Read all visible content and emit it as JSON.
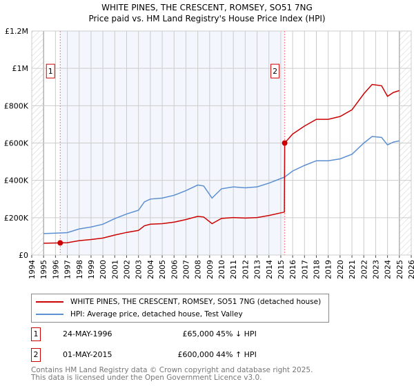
{
  "chart_data": {
    "type": "line",
    "title": "WHITE PINES, THE CRESCENT, ROMSEY, SO51 7NG",
    "subtitle": "Price paid vs. HM Land Registry's House Price Index (HPI)",
    "xlim": [
      1994,
      2026
    ],
    "ylim": [
      0,
      1200000
    ],
    "x_ticks": [
      "1994",
      "1995",
      "1996",
      "1997",
      "1998",
      "1999",
      "2000",
      "2001",
      "2002",
      "2003",
      "2004",
      "2005",
      "2006",
      "2007",
      "2008",
      "2009",
      "2010",
      "2011",
      "2012",
      "2013",
      "2014",
      "2015",
      "2016",
      "2017",
      "2018",
      "2019",
      "2020",
      "2021",
      "2022",
      "2023",
      "2024",
      "2025",
      "2026"
    ],
    "y_ticks": [
      {
        "value": 0,
        "label": "£0"
      },
      {
        "value": 200000,
        "label": "£200K"
      },
      {
        "value": 400000,
        "label": "£400K"
      },
      {
        "value": 600000,
        "label": "£600K"
      },
      {
        "value": 800000,
        "label": "£800K"
      },
      {
        "value": 1000000,
        "label": "£1M"
      },
      {
        "value": 1200000,
        "label": "£1.2M"
      }
    ],
    "grid": true,
    "series": [
      {
        "name": "WHITE PINES, THE CRESCENT, ROMSEY, SO51 7NG (detached house)",
        "color": "#cc0000",
        "points": [
          [
            1995,
            63000
          ],
          [
            1996.4,
            65000
          ],
          [
            1997,
            66000
          ],
          [
            1998,
            77000
          ],
          [
            1999,
            83000
          ],
          [
            2000,
            91000
          ],
          [
            2001,
            107000
          ],
          [
            2002,
            121000
          ],
          [
            2003,
            132000
          ],
          [
            2003.5,
            157000
          ],
          [
            2004,
            165000
          ],
          [
            2005,
            168000
          ],
          [
            2006,
            176000
          ],
          [
            2007,
            190000
          ],
          [
            2008,
            207000
          ],
          [
            2008.5,
            204000
          ],
          [
            2009.2,
            168000
          ],
          [
            2010,
            196000
          ],
          [
            2011,
            201000
          ],
          [
            2012,
            198000
          ],
          [
            2013,
            201000
          ],
          [
            2014,
            212000
          ],
          [
            2015,
            226000
          ],
          [
            2015.3,
            230000
          ],
          [
            2015.33,
            600000
          ],
          [
            2016,
            648000
          ],
          [
            2017,
            691000
          ],
          [
            2018,
            727000
          ],
          [
            2019,
            727000
          ],
          [
            2020,
            742000
          ],
          [
            2021,
            778000
          ],
          [
            2022,
            864000
          ],
          [
            2022.7,
            914000
          ],
          [
            2023.5,
            907000
          ],
          [
            2024,
            850000
          ],
          [
            2024.5,
            871000
          ],
          [
            2025,
            881000
          ]
        ]
      },
      {
        "name": "HPI: Average price, detached house, Test Valley",
        "color": "#5b8fd1",
        "points": [
          [
            1995,
            115000
          ],
          [
            1996.4,
            118000
          ],
          [
            1997,
            120000
          ],
          [
            1998,
            140000
          ],
          [
            1999,
            150000
          ],
          [
            2000,
            165000
          ],
          [
            2001,
            195000
          ],
          [
            2002,
            220000
          ],
          [
            2003,
            240000
          ],
          [
            2003.5,
            285000
          ],
          [
            2004,
            300000
          ],
          [
            2005,
            305000
          ],
          [
            2006,
            320000
          ],
          [
            2007,
            345000
          ],
          [
            2008,
            375000
          ],
          [
            2008.5,
            370000
          ],
          [
            2009.2,
            305000
          ],
          [
            2010,
            355000
          ],
          [
            2011,
            365000
          ],
          [
            2012,
            360000
          ],
          [
            2013,
            365000
          ],
          [
            2014,
            385000
          ],
          [
            2015,
            410000
          ],
          [
            2015.33,
            418000
          ],
          [
            2016,
            450000
          ],
          [
            2017,
            480000
          ],
          [
            2018,
            505000
          ],
          [
            2019,
            505000
          ],
          [
            2020,
            515000
          ],
          [
            2021,
            540000
          ],
          [
            2022,
            600000
          ],
          [
            2022.7,
            635000
          ],
          [
            2023.5,
            630000
          ],
          [
            2024,
            590000
          ],
          [
            2024.5,
            605000
          ],
          [
            2025,
            612000
          ]
        ]
      }
    ],
    "sales": [
      {
        "label": "1",
        "x": 1996.4,
        "value": 65000,
        "date": "24-MAY-1996",
        "price": "£65,000",
        "hpi": "45% ↓ HPI"
      },
      {
        "label": "2",
        "x": 2015.33,
        "value": 600000,
        "date": "01-MAY-2015",
        "price": "£600,000",
        "hpi": "44% ↑ HPI"
      }
    ],
    "legend_placement": "below"
  },
  "footer": {
    "line1": "Contains HM Land Registry data © Crown copyright and database right 2025.",
    "line2": "This data is licensed under the Open Government Licence v3.0."
  }
}
